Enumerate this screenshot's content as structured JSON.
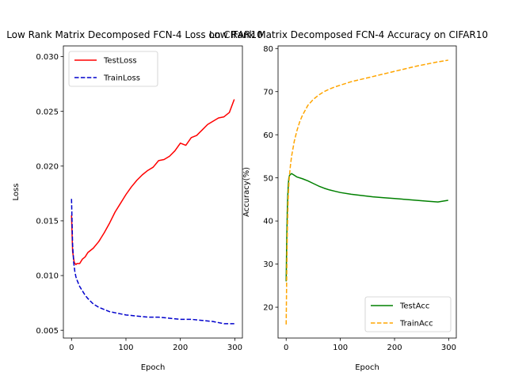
{
  "chart_data": [
    {
      "type": "line",
      "title": "Low Rank Matrix Decomposed FCN-4 Loss on CIFAR10",
      "xlabel": "Epoch",
      "ylabel": "Loss",
      "xlim": [
        -14.95,
        313.95
      ],
      "ylim": [
        0.00429,
        0.03098
      ],
      "xticks": [
        0,
        100,
        200,
        300
      ],
      "xtick_labels": [
        "0",
        "100",
        "200",
        "300"
      ],
      "yticks": [
        0.005,
        0.01,
        0.015,
        0.02,
        0.025,
        0.03
      ],
      "ytick_labels": [
        "0.005",
        "0.010",
        "0.015",
        "0.020",
        "0.025",
        "0.030"
      ],
      "legend_position": "upper left",
      "grid": false,
      "series": [
        {
          "name": "TestLoss",
          "color": "#ff0000",
          "style": "solid",
          "x": [
            0,
            2,
            5,
            8,
            10,
            15,
            20,
            25,
            30,
            40,
            50,
            60,
            70,
            80,
            90,
            100,
            110,
            120,
            130,
            140,
            150,
            160,
            170,
            180,
            190,
            200,
            210,
            220,
            230,
            240,
            250,
            260,
            270,
            280,
            290,
            299
          ],
          "values": [
            0.0155,
            0.0122,
            0.0112,
            0.011,
            0.0111,
            0.0111,
            0.0115,
            0.0117,
            0.0121,
            0.0125,
            0.0131,
            0.0139,
            0.0148,
            0.0158,
            0.0166,
            0.0174,
            0.0181,
            0.0187,
            0.0192,
            0.0196,
            0.0199,
            0.0205,
            0.0206,
            0.0209,
            0.0214,
            0.0221,
            0.0219,
            0.0226,
            0.0228,
            0.0233,
            0.0238,
            0.0241,
            0.0244,
            0.0245,
            0.0249,
            0.0261
          ]
        },
        {
          "name": "TrainLoss",
          "color": "#0000cc",
          "style": "dashed",
          "x": [
            0,
            2,
            4,
            6,
            8,
            10,
            15,
            20,
            25,
            30,
            40,
            50,
            60,
            70,
            80,
            90,
            100,
            120,
            140,
            160,
            180,
            200,
            220,
            240,
            260,
            280,
            299
          ],
          "values": [
            0.017,
            0.0128,
            0.0112,
            0.0104,
            0.0099,
            0.0096,
            0.009,
            0.0086,
            0.0082,
            0.0079,
            0.0074,
            0.0071,
            0.0069,
            0.0067,
            0.0066,
            0.0065,
            0.0064,
            0.0063,
            0.0062,
            0.0062,
            0.0061,
            0.006,
            0.006,
            0.0059,
            0.0058,
            0.0056,
            0.0056
          ]
        }
      ]
    },
    {
      "type": "line",
      "title": "Low Rank Matrix Decomposed FCN-4 Accuracy on CIFAR10",
      "xlabel": "Epoch",
      "ylabel": "Accuracy(%)",
      "xlim": [
        -14.95,
        313.95
      ],
      "ylim": [
        12.85,
        80.6
      ],
      "xticks": [
        0,
        100,
        200,
        300
      ],
      "xtick_labels": [
        "0",
        "100",
        "200",
        "300"
      ],
      "yticks": [
        20,
        30,
        40,
        50,
        60,
        70,
        80
      ],
      "ytick_labels": [
        "20",
        "30",
        "40",
        "50",
        "60",
        "70",
        "80"
      ],
      "legend_position": "lower right",
      "grid": false,
      "series": [
        {
          "name": "TestAcc",
          "color": "#008000",
          "style": "solid",
          "x": [
            0,
            1,
            2,
            3,
            4,
            5,
            6,
            8,
            10,
            15,
            20,
            30,
            40,
            50,
            60,
            70,
            80,
            90,
            100,
            120,
            140,
            160,
            180,
            200,
            220,
            240,
            260,
            280,
            299
          ],
          "values": [
            26,
            35,
            42,
            46,
            48.5,
            50,
            50.5,
            50.8,
            51,
            50.6,
            50.2,
            49.8,
            49.3,
            48.7,
            48.1,
            47.6,
            47.2,
            46.9,
            46.6,
            46.2,
            45.9,
            45.6,
            45.4,
            45.2,
            45,
            44.8,
            44.6,
            44.4,
            44.8
          ]
        },
        {
          "name": "TrainAcc",
          "color": "#ffa500",
          "style": "dashed",
          "x": [
            0,
            1,
            2,
            3,
            4,
            5,
            6,
            8,
            10,
            15,
            20,
            25,
            30,
            40,
            50,
            60,
            70,
            80,
            90,
            100,
            120,
            140,
            160,
            180,
            200,
            220,
            240,
            260,
            280,
            299
          ],
          "values": [
            16,
            27,
            36,
            42,
            46,
            48.5,
            50.5,
            53,
            55,
            58.5,
            61,
            63,
            64.5,
            66.8,
            68.2,
            69.2,
            70,
            70.6,
            71.1,
            71.5,
            72.3,
            72.9,
            73.5,
            74.1,
            74.7,
            75.3,
            75.9,
            76.4,
            76.9,
            77.3
          ]
        }
      ]
    }
  ]
}
